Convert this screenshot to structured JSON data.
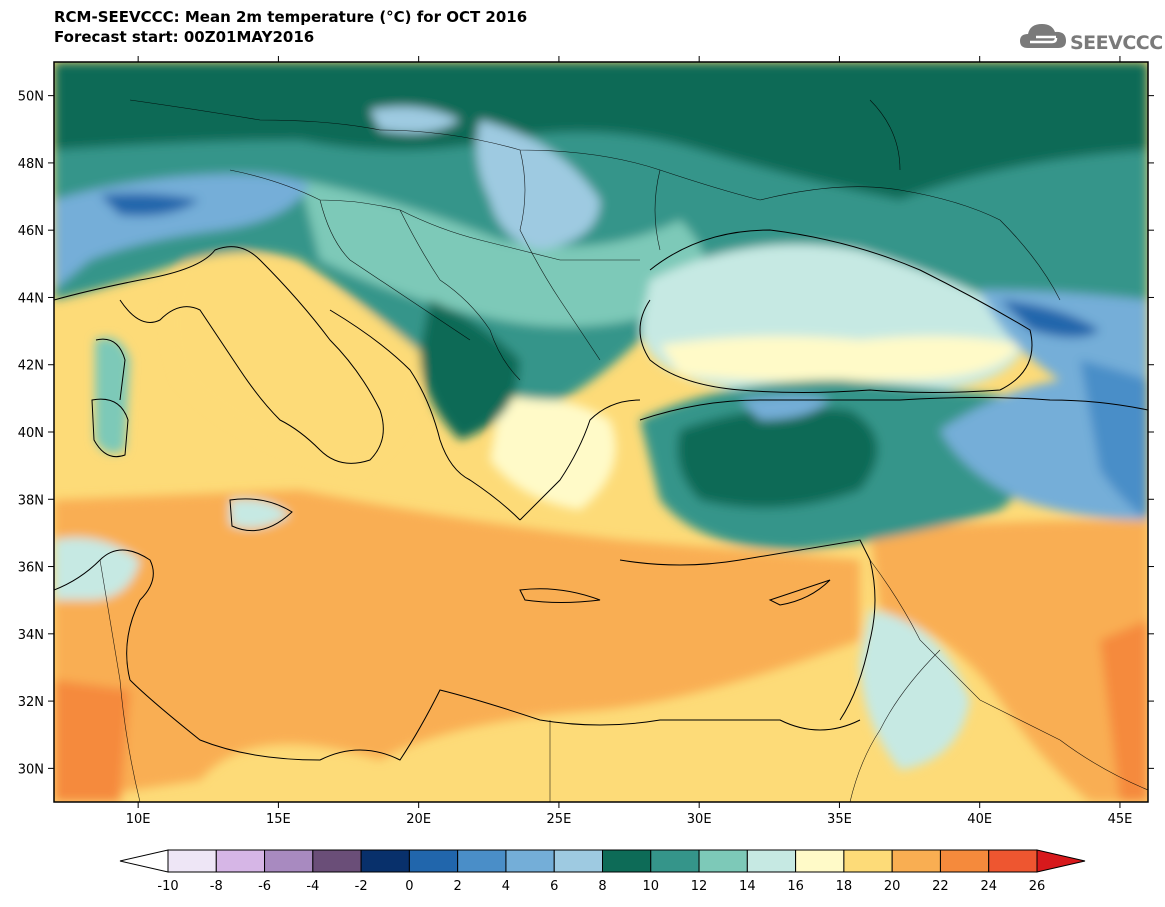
{
  "header": {
    "title": "RCM-SEEVCCC: Mean 2m temperature (°C) for OCT 2016",
    "subtitle": "Forecast start: 00Z01MAY2016",
    "logo_text": "SEEVCCC"
  },
  "map": {
    "lon_range": [
      7,
      46
    ],
    "lat_range": [
      29,
      51
    ],
    "lat_ticks": [
      "50N",
      "48N",
      "46N",
      "44N",
      "42N",
      "40N",
      "38N",
      "36N",
      "34N",
      "32N",
      "30N"
    ],
    "lon_ticks": [
      "10E",
      "15E",
      "20E",
      "25E",
      "30E",
      "35E",
      "40E",
      "45E"
    ]
  },
  "legend": {
    "labels": [
      "-10",
      "-8",
      "-6",
      "-4",
      "-2",
      "0",
      "2",
      "4",
      "6",
      "8",
      "10",
      "12",
      "14",
      "16",
      "18",
      "20",
      "22",
      "24",
      "26"
    ],
    "colors": [
      "#ffffff",
      "#eee6f6",
      "#d6b6e6",
      "#a88ac0",
      "#6a4e78",
      "#08306b",
      "#2166ac",
      "#4a8ec8",
      "#74aed8",
      "#9ecae1",
      "#0d6b57",
      "#35958a",
      "#7dc9b8",
      "#c6e9e3",
      "#fffac8",
      "#fddb78",
      "#f9ae52",
      "#f58a3c",
      "#ee5630",
      "#d7191c"
    ]
  }
}
